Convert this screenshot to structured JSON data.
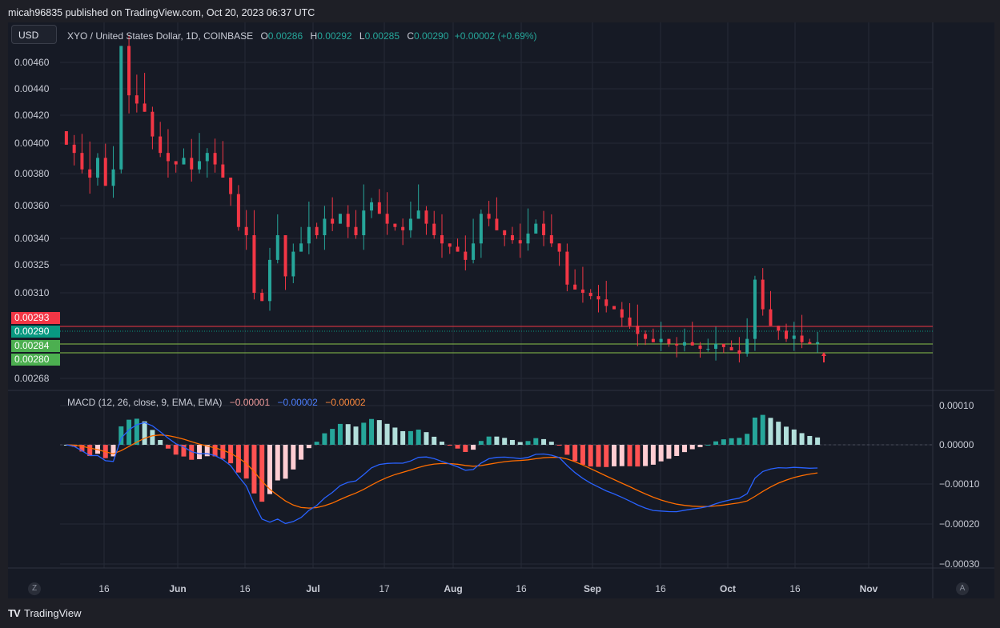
{
  "header": {
    "published": "micah96835 published on TradingView.com, Oct 20, 2023 06:37 UTC"
  },
  "currency_button": "USD",
  "legend": {
    "symbol": "XYO / United States Dollar, 1D, COINBASE",
    "o_label": "O",
    "o": "0.00286",
    "h_label": "H",
    "h": "0.00292",
    "l_label": "L",
    "l": "0.00285",
    "c_label": "C",
    "c": "0.00290",
    "change": "+0.00002 (+0.69%)"
  },
  "price_axis": [
    "0.00460",
    "0.00440",
    "0.00420",
    "0.00400",
    "0.00380",
    "0.00360",
    "0.00340",
    "0.00325",
    "0.00310",
    "0.00268"
  ],
  "price_tags": [
    {
      "label": "0.00293",
      "color": "#f23645"
    },
    {
      "label": "0.00290",
      "color": "#089981"
    },
    {
      "label": "0.00284",
      "color": "#4caf50"
    },
    {
      "label": "0.00280",
      "color": "#4caf50"
    }
  ],
  "macd_legend": {
    "title": "MACD (12, 26, close, 9, EMA, EMA)",
    "hist": "−0.00001",
    "macd": "−0.00002",
    "signal": "−0.00002"
  },
  "macd_axis": [
    "0.00010",
    "0.00000",
    "−0.00010",
    "−0.00020",
    "−0.00030"
  ],
  "time_axis": [
    "16",
    "Jun",
    "16",
    "Jul",
    "17",
    "Aug",
    "16",
    "Sep",
    "16",
    "Oct",
    "16",
    "Nov"
  ],
  "buttons": {
    "z": "Z",
    "a": "A"
  },
  "brand": "TradingView",
  "colors": {
    "up": "#26a69a",
    "down": "#f23645",
    "macd": "#2962ff",
    "signal": "#ff6d00",
    "bg": "#161a25"
  },
  "chart_data": {
    "type": "candlestick",
    "title": "XYO / United States Dollar, 1D, COINBASE",
    "ylim": [
      0.00265,
      0.0047
    ],
    "x_range": [
      "2023-05-03",
      "2023-11-10"
    ],
    "candles_close_approx": [
      0.0041,
      0.00405,
      0.00395,
      0.0039,
      0.00402,
      0.00385,
      0.00395,
      0.0047,
      0.0044,
      0.00435,
      0.0043,
      0.00415,
      0.00405,
      0.004,
      0.00398,
      0.00402,
      0.00395,
      0.004,
      0.00405,
      0.00398,
      0.0039,
      0.0038,
      0.0036,
      0.00355,
      0.0032,
      0.00315,
      0.0034,
      0.00355,
      0.0033,
      0.00345,
      0.0035,
      0.0036,
      0.00355,
      0.00365,
      0.00362,
      0.00368,
      0.0036,
      0.00355,
      0.0037,
      0.00375,
      0.00368,
      0.00362,
      0.0036,
      0.00358,
      0.00365,
      0.0037,
      0.00362,
      0.00355,
      0.0035,
      0.00348,
      0.00345,
      0.0034,
      0.0035,
      0.00368,
      0.00365,
      0.00358,
      0.00355,
      0.00352,
      0.0035,
      0.00356,
      0.00362,
      0.00355,
      0.0035,
      0.00345,
      0.00325,
      0.00322,
      0.0032,
      0.00318,
      0.00316,
      0.00312,
      0.0031,
      0.00305,
      0.003,
      0.00295,
      0.00292,
      0.0029,
      0.00292,
      0.00289,
      0.00288,
      0.0029,
      0.00288,
      0.00286,
      0.00286,
      0.00289,
      0.00287,
      0.00285,
      0.00283,
      0.00292,
      0.00328,
      0.0031,
      0.003,
      0.00297,
      0.00292,
      0.00294,
      0.0029,
      0.00289,
      0.0029
    ],
    "macd_range": [
      -0.00032,
      0.00011
    ],
    "series": [
      {
        "name": "MACD"
      },
      {
        "name": "Signal"
      },
      {
        "name": "Histogram"
      }
    ]
  }
}
